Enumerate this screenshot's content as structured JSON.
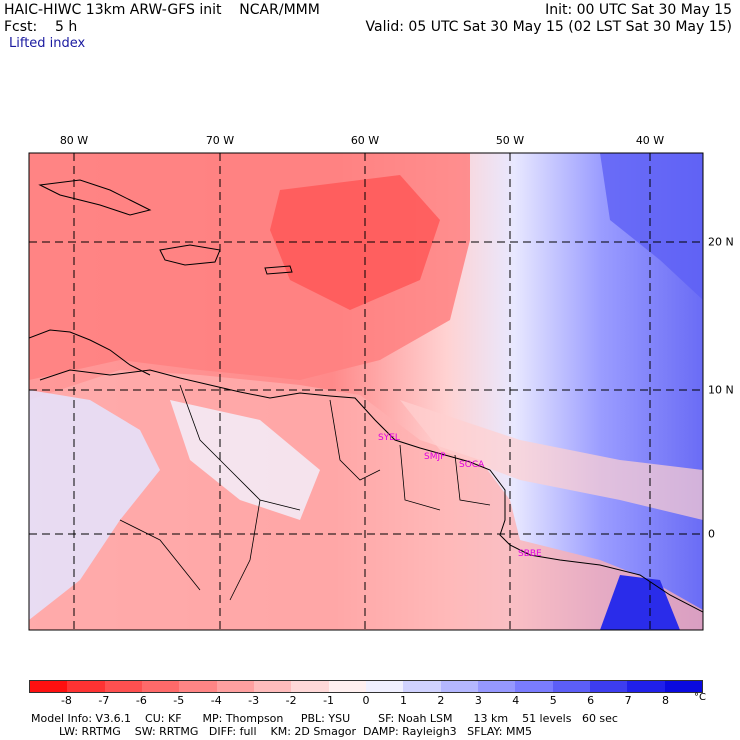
{
  "header": {
    "title": "HAIC-HIWC 13km ARW-GFS init    NCAR/MMM",
    "init": "Init: 00 UTC Sat 30 May 15",
    "fcst": "Fcst:    5 h",
    "valid": "Valid: 05 UTC Sat 30 May 15 (02 LST Sat 30 May 15)",
    "field": "Lifted index"
  },
  "longitude_labels": [
    "80 W",
    "70 W",
    "60 W",
    "50 W",
    "40 W"
  ],
  "latitude_labels": [
    "20 N",
    "10 N",
    "0"
  ],
  "stations": [
    "SYEL",
    "SMJP",
    "SOCA",
    "SBBE"
  ],
  "colorbar": {
    "unit": "°C",
    "labels": [
      "-8",
      "-7",
      "-6",
      "-5",
      "-4",
      "-3",
      "-2",
      "-1",
      "0",
      "1",
      "2",
      "3",
      "4",
      "5",
      "6",
      "7",
      "8"
    ],
    "colors": [
      "#ff1010",
      "#ff3333",
      "#ff5050",
      "#ff6a6a",
      "#ff8585",
      "#ffa0a0",
      "#ffbcbc",
      "#ffd8d8",
      "#fff0f0",
      "#f0f0ff",
      "#d0d2ff",
      "#b4b7ff",
      "#9698ff",
      "#7a7cff",
      "#5c5ef7",
      "#3d3df0",
      "#2020ea",
      "#0a0ae0"
    ]
  },
  "footer": {
    "line1": "Model Info: V3.6.1    CU: KF      MP: Thompson     PBL: YSU        SF: Noah LSM      13 km    51 levels   60 sec",
    "line2": "        LW: RRTMG    SW: RRTMG   DIFF: full    KM: 2D Smagor  DAMP: Rayleigh3   SFLAY: MM5"
  }
}
